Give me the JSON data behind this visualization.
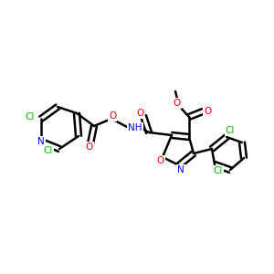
{
  "bg_color": "#ffffff",
  "atom_colors": {
    "C": "#000000",
    "N": "#0000ff",
    "O": "#ff0000",
    "Cl": "#00bb00",
    "H": "#000000"
  },
  "bond_color": "#000000",
  "bond_width": 1.8,
  "font_size": 7.5,
  "fig_size": [
    3.0,
    3.0
  ],
  "dpi": 100
}
